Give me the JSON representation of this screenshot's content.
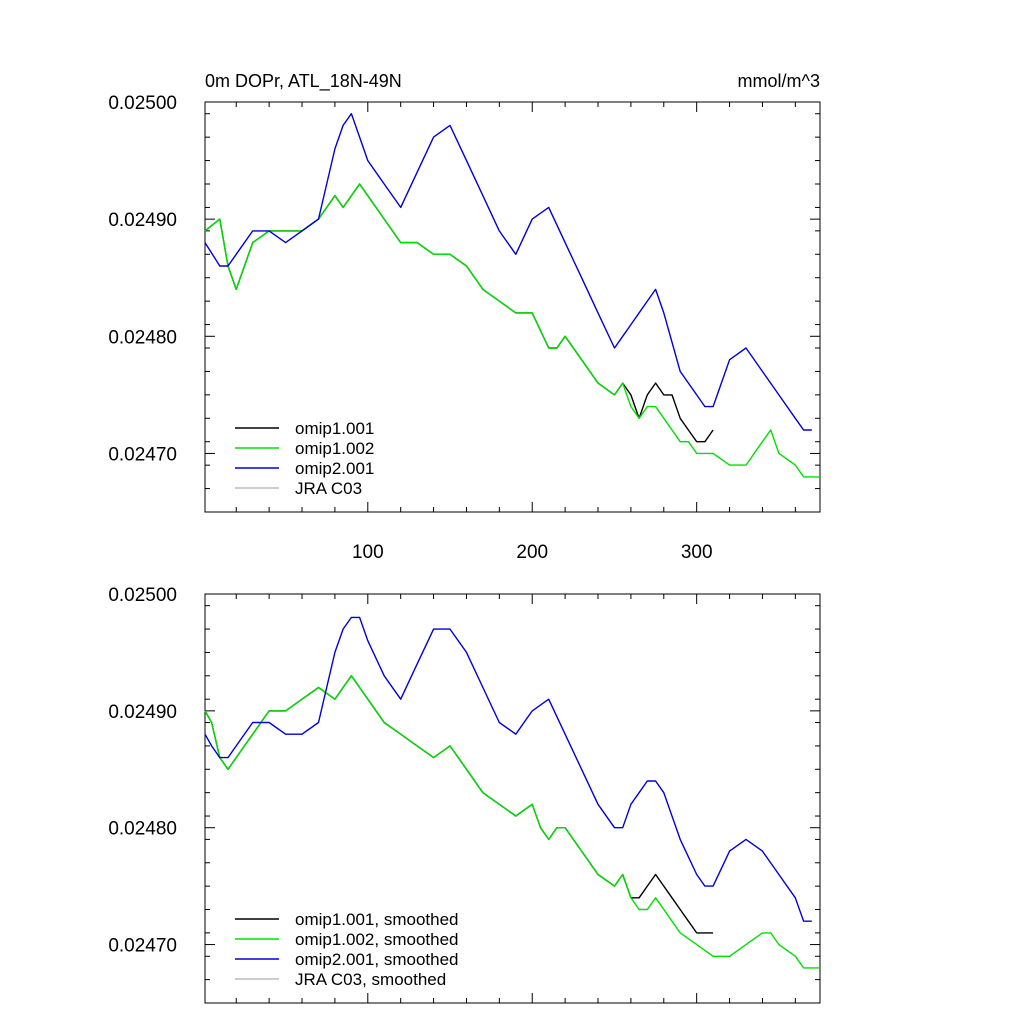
{
  "title_left": "0m DOPr, ATL_18N-49N",
  "title_right": "mmol/m^3",
  "colors": {
    "omip1_001": "#000000",
    "omip1_002": "#00e000",
    "omip2_001": "#0000d8",
    "jra_c03": "#bbbbbb"
  },
  "chart_data": [
    {
      "type": "line",
      "xlim": [
        1,
        375
      ],
      "ylim": [
        0.02465,
        0.025
      ],
      "x_tick_labels": [
        "100",
        "200",
        "300"
      ],
      "y_tick_labels": [
        "0.02500",
        "0.02490",
        "0.02480",
        "0.02470"
      ],
      "legend_position": "bottom-left",
      "grid": false,
      "series": [
        {
          "name": "omip1.001",
          "color_key": "omip1_001",
          "x": [
            1,
            10,
            15,
            20,
            30,
            40,
            50,
            60,
            70,
            80,
            85,
            90,
            95,
            100,
            110,
            120,
            130,
            140,
            150,
            160,
            170,
            180,
            190,
            200,
            210,
            215,
            220,
            230,
            240,
            250,
            255,
            260,
            265,
            270,
            275,
            280,
            285,
            290,
            295,
            300,
            305,
            310
          ],
          "y": [
            0.02489,
            0.0249,
            0.02486,
            0.02484,
            0.02488,
            0.02489,
            0.02489,
            0.02489,
            0.0249,
            0.02492,
            0.02491,
            0.02492,
            0.02493,
            0.02492,
            0.0249,
            0.02488,
            0.02488,
            0.02487,
            0.02487,
            0.02486,
            0.02484,
            0.02483,
            0.02482,
            0.02482,
            0.02479,
            0.02479,
            0.0248,
            0.02478,
            0.02476,
            0.02475,
            0.02476,
            0.02475,
            0.02473,
            0.02475,
            0.02476,
            0.02475,
            0.02475,
            0.02473,
            0.02472,
            0.02471,
            0.02471,
            0.02472
          ]
        },
        {
          "name": "omip1.002",
          "color_key": "omip1_002",
          "x": [
            1,
            10,
            15,
            20,
            30,
            40,
            50,
            60,
            70,
            80,
            85,
            90,
            95,
            100,
            110,
            120,
            130,
            140,
            150,
            160,
            170,
            180,
            190,
            200,
            210,
            215,
            220,
            230,
            240,
            250,
            255,
            260,
            265,
            270,
            275,
            280,
            285,
            290,
            295,
            300,
            310,
            320,
            330,
            340,
            345,
            350,
            360,
            365,
            370,
            375
          ],
          "y": [
            0.02489,
            0.0249,
            0.02486,
            0.02484,
            0.02488,
            0.02489,
            0.02489,
            0.02489,
            0.0249,
            0.02492,
            0.02491,
            0.02492,
            0.02493,
            0.02492,
            0.0249,
            0.02488,
            0.02488,
            0.02487,
            0.02487,
            0.02486,
            0.02484,
            0.02483,
            0.02482,
            0.02482,
            0.02479,
            0.02479,
            0.0248,
            0.02478,
            0.02476,
            0.02475,
            0.02476,
            0.02474,
            0.02473,
            0.02474,
            0.02474,
            0.02473,
            0.02472,
            0.02471,
            0.02471,
            0.0247,
            0.0247,
            0.02469,
            0.02469,
            0.02471,
            0.02472,
            0.0247,
            0.02469,
            0.02468,
            0.02468,
            0.02468
          ]
        },
        {
          "name": "omip2.001",
          "color_key": "omip2_001",
          "x": [
            1,
            10,
            15,
            20,
            30,
            40,
            50,
            60,
            70,
            80,
            85,
            90,
            95,
            100,
            110,
            120,
            130,
            140,
            150,
            160,
            170,
            180,
            190,
            200,
            210,
            220,
            230,
            240,
            250,
            255,
            260,
            270,
            275,
            280,
            290,
            300,
            305,
            310,
            320,
            330,
            340,
            350,
            360,
            365,
            370
          ],
          "y": [
            0.02488,
            0.02486,
            0.02486,
            0.02487,
            0.02489,
            0.02489,
            0.02488,
            0.02489,
            0.0249,
            0.02496,
            0.02498,
            0.02499,
            0.02497,
            0.02495,
            0.02493,
            0.02491,
            0.02494,
            0.02497,
            0.02498,
            0.02495,
            0.02492,
            0.02489,
            0.02487,
            0.0249,
            0.02491,
            0.02488,
            0.02485,
            0.02482,
            0.02479,
            0.0248,
            0.02481,
            0.02483,
            0.02484,
            0.02482,
            0.02477,
            0.02475,
            0.02474,
            0.02474,
            0.02478,
            0.02479,
            0.02477,
            0.02475,
            0.02473,
            0.02472,
            0.02472
          ]
        },
        {
          "name": "JRA C03",
          "color_key": "jra_c03",
          "x": [],
          "y": []
        }
      ]
    },
    {
      "type": "line",
      "xlim": [
        1,
        375
      ],
      "ylim": [
        0.02465,
        0.025
      ],
      "x_tick_labels": [],
      "y_tick_labels": [
        "0.02500",
        "0.02490",
        "0.02480",
        "0.02470"
      ],
      "legend_position": "bottom-left",
      "grid": false,
      "series": [
        {
          "name": "omip1.001, smoothed",
          "color_key": "omip1_001",
          "x": [
            1,
            5,
            10,
            15,
            20,
            30,
            40,
            50,
            60,
            70,
            80,
            85,
            90,
            95,
            100,
            110,
            120,
            130,
            140,
            150,
            160,
            170,
            180,
            190,
            200,
            205,
            210,
            215,
            220,
            230,
            240,
            250,
            255,
            260,
            265,
            270,
            275,
            280,
            285,
            290,
            295,
            300,
            305,
            310
          ],
          "y": [
            0.0249,
            0.02489,
            0.02486,
            0.02485,
            0.02486,
            0.02488,
            0.0249,
            0.0249,
            0.02491,
            0.02492,
            0.02491,
            0.02492,
            0.02493,
            0.02492,
            0.02491,
            0.02489,
            0.02488,
            0.02487,
            0.02486,
            0.02487,
            0.02485,
            0.02483,
            0.02482,
            0.02481,
            0.02482,
            0.0248,
            0.02479,
            0.0248,
            0.0248,
            0.02478,
            0.02476,
            0.02475,
            0.02476,
            0.02474,
            0.02474,
            0.02475,
            0.02476,
            0.02475,
            0.02474,
            0.02473,
            0.02472,
            0.02471,
            0.02471,
            0.02471
          ]
        },
        {
          "name": "omip1.002, smoothed",
          "color_key": "omip1_002",
          "x": [
            1,
            5,
            10,
            15,
            20,
            30,
            40,
            50,
            60,
            70,
            80,
            85,
            90,
            95,
            100,
            110,
            120,
            130,
            140,
            150,
            160,
            170,
            180,
            190,
            200,
            205,
            210,
            215,
            220,
            230,
            240,
            250,
            255,
            260,
            265,
            270,
            275,
            280,
            285,
            290,
            300,
            310,
            320,
            330,
            340,
            345,
            350,
            360,
            365,
            370,
            375
          ],
          "y": [
            0.0249,
            0.02489,
            0.02486,
            0.02485,
            0.02486,
            0.02488,
            0.0249,
            0.0249,
            0.02491,
            0.02492,
            0.02491,
            0.02492,
            0.02493,
            0.02492,
            0.02491,
            0.02489,
            0.02488,
            0.02487,
            0.02486,
            0.02487,
            0.02485,
            0.02483,
            0.02482,
            0.02481,
            0.02482,
            0.0248,
            0.02479,
            0.0248,
            0.0248,
            0.02478,
            0.02476,
            0.02475,
            0.02476,
            0.02474,
            0.02473,
            0.02473,
            0.02474,
            0.02473,
            0.02472,
            0.02471,
            0.0247,
            0.02469,
            0.02469,
            0.0247,
            0.02471,
            0.02471,
            0.0247,
            0.02469,
            0.02468,
            0.02468,
            0.02468
          ]
        },
        {
          "name": "omip2.001, smoothed",
          "color_key": "omip2_001",
          "x": [
            1,
            5,
            10,
            15,
            20,
            30,
            40,
            50,
            60,
            70,
            80,
            85,
            90,
            95,
            100,
            110,
            120,
            130,
            140,
            150,
            160,
            170,
            180,
            190,
            200,
            210,
            220,
            230,
            240,
            250,
            255,
            260,
            265,
            270,
            275,
            280,
            290,
            300,
            305,
            310,
            320,
            330,
            340,
            350,
            360,
            365,
            370
          ],
          "y": [
            0.02488,
            0.02487,
            0.02486,
            0.02486,
            0.02487,
            0.02489,
            0.02489,
            0.02488,
            0.02488,
            0.02489,
            0.02495,
            0.02497,
            0.02498,
            0.02498,
            0.02496,
            0.02493,
            0.02491,
            0.02494,
            0.02497,
            0.02497,
            0.02495,
            0.02492,
            0.02489,
            0.02488,
            0.0249,
            0.02491,
            0.02488,
            0.02485,
            0.02482,
            0.0248,
            0.0248,
            0.02482,
            0.02483,
            0.02484,
            0.02484,
            0.02483,
            0.02479,
            0.02476,
            0.02475,
            0.02475,
            0.02478,
            0.02479,
            0.02478,
            0.02476,
            0.02474,
            0.02472,
            0.02472
          ]
        },
        {
          "name": "JRA C03, smoothed",
          "color_key": "jra_c03",
          "x": [],
          "y": []
        }
      ]
    }
  ]
}
